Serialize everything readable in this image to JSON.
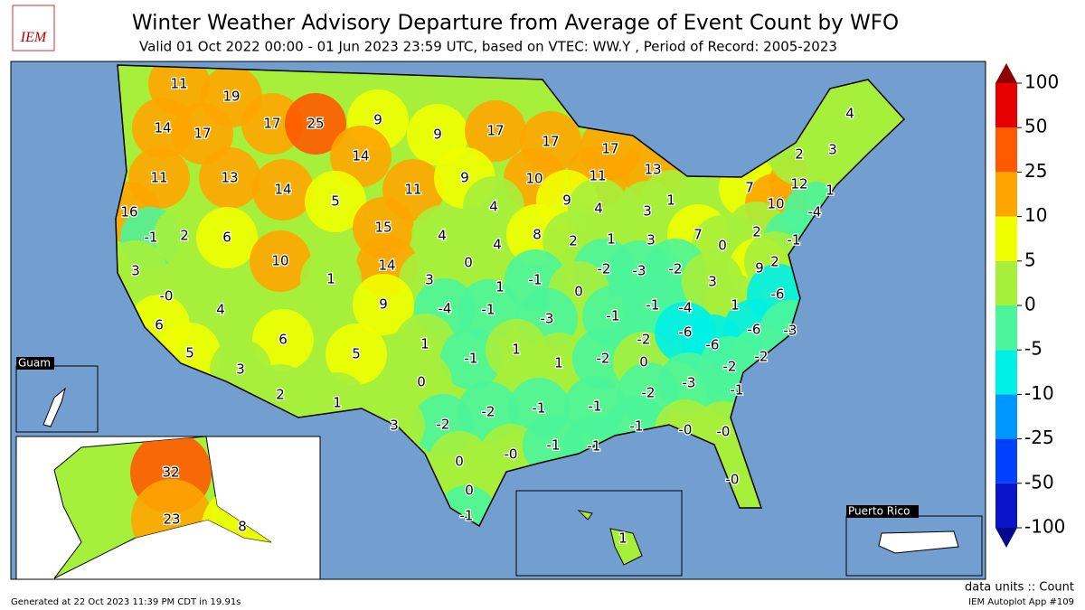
{
  "map": {
    "type": "choropleth",
    "title": "Winter Weather Advisory Departure from Average of Event Count by WFO",
    "subtitle": "Valid 01 Oct 2022 00:00 - 01 Jun 2023 23:59 UTC, based on VTEC: WW.Y  , Period of Record: 2005-2023",
    "logo": "IEM",
    "insets": [
      "Guam",
      "Puerto Rico"
    ],
    "colorbar": {
      "ticks": [
        -100,
        -50,
        -25,
        -10,
        -5,
        0,
        5,
        10,
        25,
        50,
        100
      ],
      "colors": [
        "#0a14c8",
        "#0040ff",
        "#0096ff",
        "#00f0e6",
        "#4cf59a",
        "#a6f03c",
        "#f0ff00",
        "#ffa500",
        "#ff5a00",
        "#e60000"
      ],
      "under": "#000a8c",
      "over": "#8c0000",
      "units": "data units :: Count"
    },
    "values": [
      11,
      19,
      17,
      25,
      9,
      9,
      17,
      17,
      17,
      14,
      17,
      14,
      11,
      13,
      14,
      5,
      11,
      9,
      10,
      11,
      13,
      9,
      1,
      16,
      -1,
      2,
      6,
      15,
      4,
      4,
      3,
      7,
      12,
      1,
      10,
      -4,
      2,
      3,
      4,
      4,
      4,
      8,
      2,
      1,
      3,
      7,
      0,
      2,
      -1,
      10,
      14,
      0,
      3,
      1,
      3,
      1,
      -1,
      -2,
      -3,
      -2,
      9,
      2,
      0,
      9,
      -4,
      -1,
      0,
      -1,
      -1,
      -4,
      -3,
      3,
      1,
      -6,
      -6,
      -3,
      6,
      4,
      6,
      5,
      1,
      -1,
      1,
      1,
      -2,
      -2,
      0,
      -6,
      -6,
      -2,
      -2,
      5,
      3,
      0,
      -3,
      -2,
      -1,
      2,
      1,
      -2,
      -2,
      -1,
      -1,
      3,
      -1,
      0,
      0,
      0,
      -1,
      -1,
      0,
      0,
      0,
      -1,
      1,
      32,
      23,
      8
    ],
    "value_labels": [
      "11",
      "19",
      "17",
      "25",
      "9",
      "9",
      "17",
      "17",
      "17",
      "14",
      "17",
      "14",
      "11",
      "13",
      "14",
      "5",
      "11",
      "9",
      "10",
      "11",
      "13",
      "9",
      "1",
      "16",
      "-1",
      "2",
      "6",
      "15",
      "4",
      "4",
      "3",
      "7",
      "12",
      "1",
      "10",
      "-4",
      "2",
      "3",
      "4",
      "4",
      "4",
      "8",
      "2",
      "1",
      "3",
      "7",
      "0",
      "2",
      "-1",
      "10",
      "14",
      "0",
      "3",
      "1",
      "3",
      "1",
      "-1",
      "-2",
      "-3",
      "-2",
      "9",
      "2",
      "-0",
      "9",
      "-4",
      "-1",
      "0",
      "-1",
      "-1",
      "-4",
      "-3",
      "3",
      "1",
      "-6",
      "-6",
      "-3",
      "6",
      "4",
      "6",
      "5",
      "1",
      "-1",
      "1",
      "1",
      "-2",
      "-2",
      "0",
      "-6",
      "-6",
      "-2",
      "-2",
      "5",
      "3",
      "0",
      "-3",
      "-2",
      "-1",
      "2",
      "1",
      "-2",
      "-2",
      "-1",
      "-1",
      "3",
      "-1",
      "-0",
      "-0",
      "-0",
      "-1",
      "-1",
      "0",
      "-0",
      "0",
      "-1",
      "1",
      "32",
      "23",
      "8"
    ]
  },
  "footer": {
    "generated": "Generated at 22 Oct 2023 11:39 PM CDT in 19.91s",
    "app": "IEM Autoplot App #109"
  }
}
